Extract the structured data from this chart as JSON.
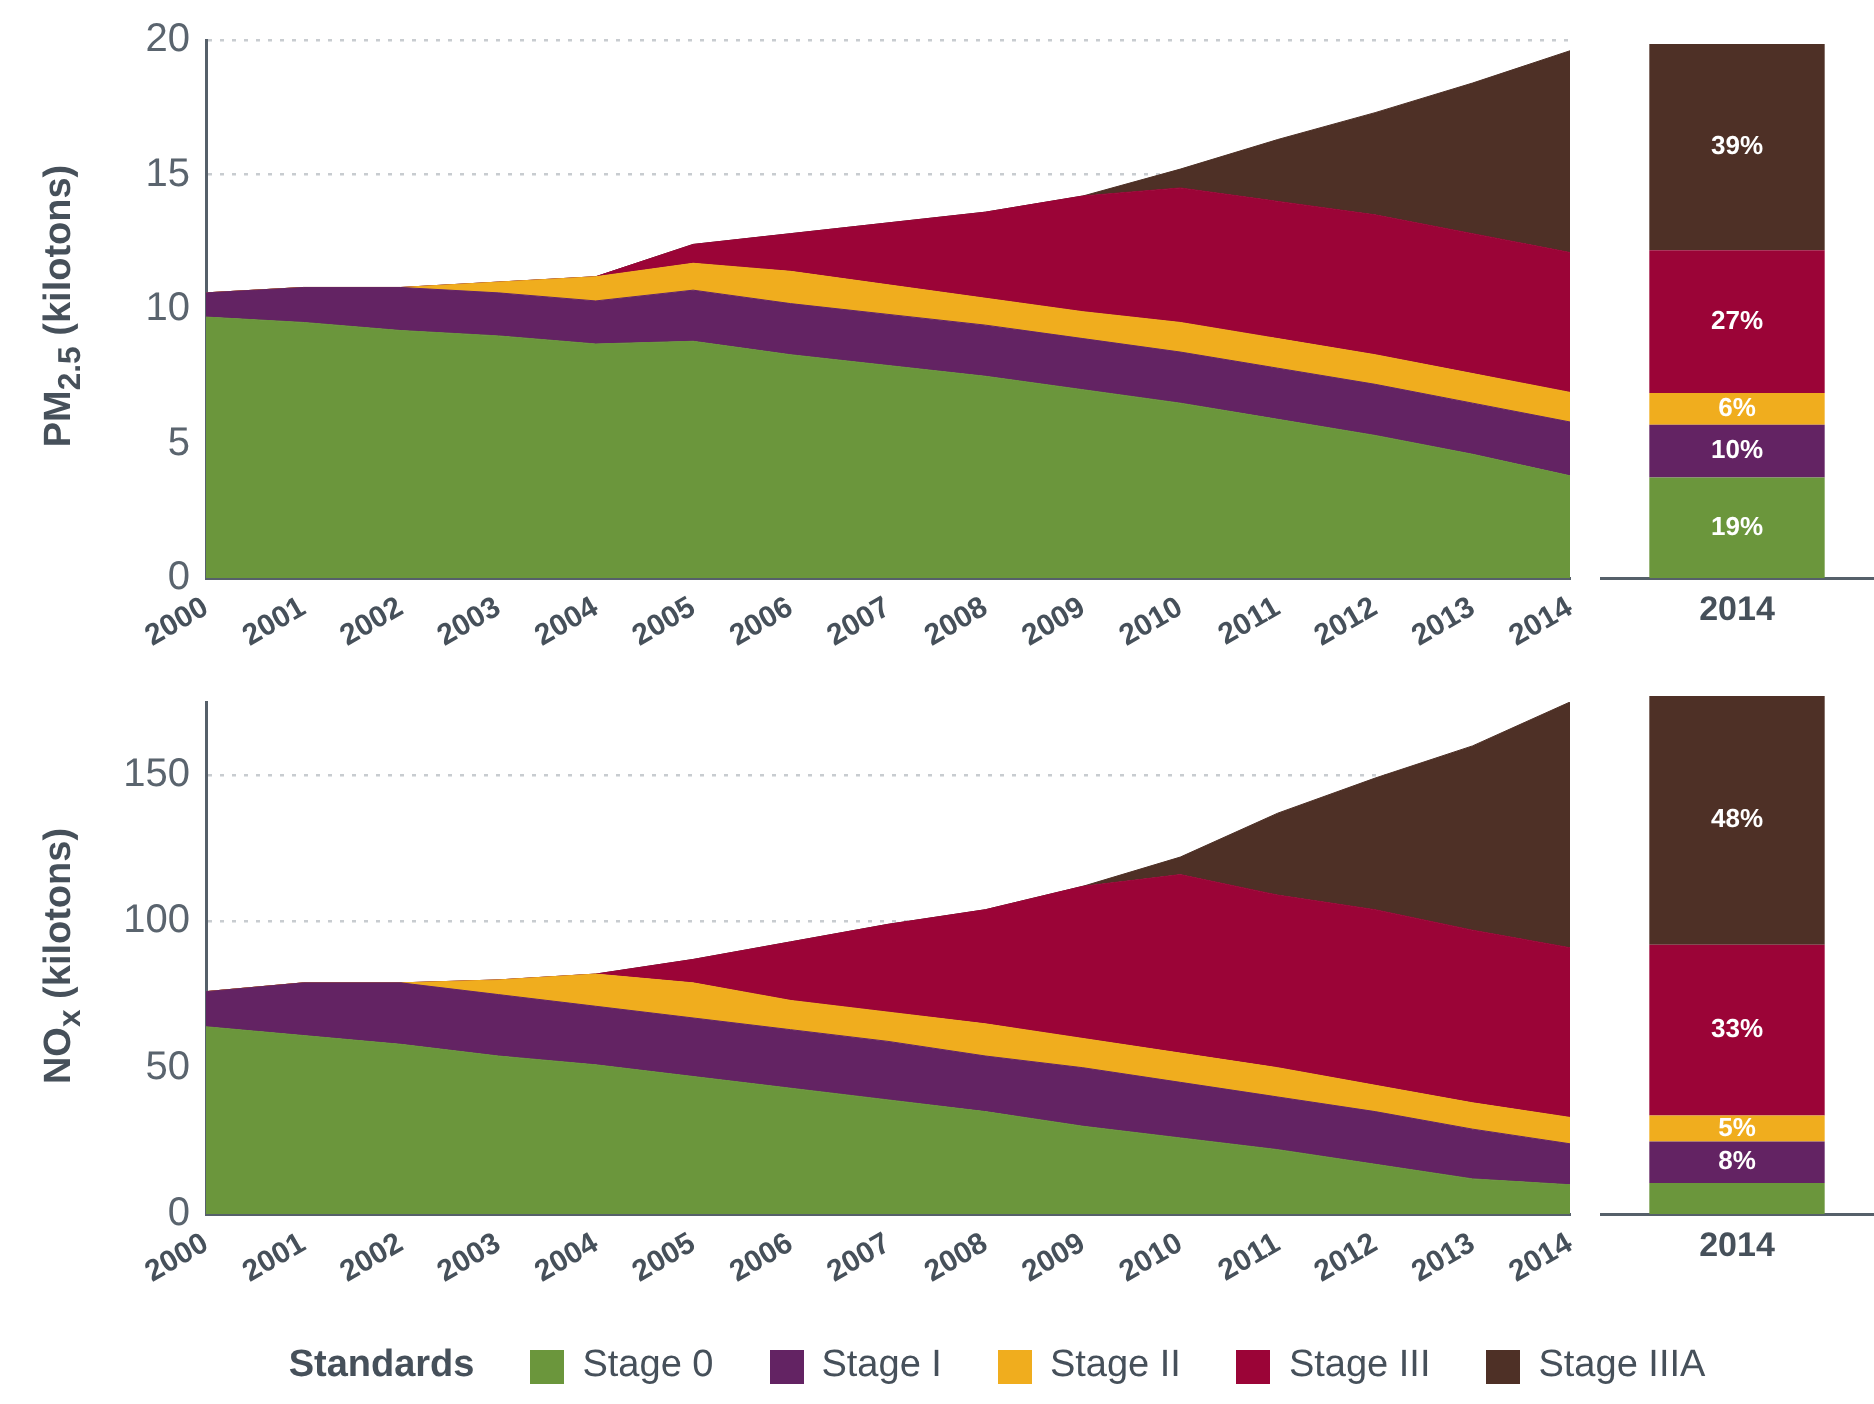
{
  "chart_data": [
    {
      "type": "area",
      "ylabel": "PM$_{2.5}$ (kilotons)",
      "stacked": true,
      "categories": [
        "2000",
        "2001",
        "2002",
        "2003",
        "2004",
        "2005",
        "2006",
        "2007",
        "2008",
        "2009",
        "2010",
        "2011",
        "2012",
        "2013",
        "2014"
      ],
      "ylim": [
        0,
        20
      ],
      "yticks": [
        0,
        5,
        10,
        15,
        20
      ],
      "grid": "y",
      "legend": "bottom",
      "legend_title": "Standards",
      "series": [
        {
          "name": "Stage 0",
          "color": "#6b963c",
          "values": [
            9.7,
            9.5,
            9.2,
            9.0,
            8.7,
            8.8,
            8.3,
            7.9,
            7.5,
            7.0,
            6.5,
            5.9,
            5.3,
            4.6,
            3.8
          ]
        },
        {
          "name": "Stage I",
          "color": "#632363",
          "values": [
            0.9,
            1.3,
            1.6,
            1.6,
            1.6,
            1.9,
            1.9,
            1.9,
            1.9,
            1.9,
            1.9,
            1.9,
            1.9,
            1.9,
            2.0
          ]
        },
        {
          "name": "Stage II",
          "color": "#f0ad1e",
          "values": [
            0,
            0,
            0,
            0.4,
            0.9,
            1.0,
            1.2,
            1.1,
            1.0,
            1.0,
            1.1,
            1.1,
            1.1,
            1.1,
            1.1
          ]
        },
        {
          "name": "Stage III",
          "color": "#9b0437",
          "values": [
            0,
            0,
            0,
            0,
            0,
            0.7,
            1.4,
            2.3,
            3.2,
            4.3,
            5.0,
            5.1,
            5.2,
            5.2,
            5.2
          ]
        },
        {
          "name": "Stage IIIA",
          "color": "#4e3026",
          "values": [
            0,
            0,
            0,
            0,
            0,
            0,
            0,
            0,
            0,
            0,
            0.7,
            2.3,
            3.8,
            5.6,
            7.5
          ]
        }
      ]
    },
    {
      "type": "bar",
      "stacked": true,
      "categories": [
        "2014"
      ],
      "tick_labels": "x",
      "series": [
        {
          "color": "#6b963c",
          "values": [
            19
          ],
          "value_labels": [
            "19%"
          ]
        },
        {
          "color": "#632363",
          "values": [
            10
          ],
          "value_labels": [
            "10%"
          ]
        },
        {
          "color": "#f0ad1e",
          "values": [
            6
          ],
          "value_labels": [
            "6%"
          ]
        },
        {
          "color": "#9b0437",
          "values": [
            27
          ],
          "value_labels": [
            "27%"
          ]
        },
        {
          "color": "#4e3026",
          "values": [
            39
          ],
          "value_labels": [
            "39%"
          ]
        }
      ]
    },
    {
      "type": "area",
      "ylabel": "NO$_{x}$ (kilotons)",
      "stacked": true,
      "categories": [
        "2000",
        "2001",
        "2002",
        "2003",
        "2004",
        "2005",
        "2006",
        "2007",
        "2008",
        "2009",
        "2010",
        "2011",
        "2012",
        "2013",
        "2014"
      ],
      "ylim": [
        0,
        175
      ],
      "yticks": [
        0,
        50,
        100,
        150
      ],
      "grid": "y",
      "series": [
        {
          "color": "#6b963c",
          "values": [
            64,
            61,
            58,
            54,
            51,
            47,
            43,
            39,
            35,
            30,
            26,
            22,
            17,
            12,
            10
          ]
        },
        {
          "color": "#632363",
          "values": [
            12,
            18,
            21,
            21,
            20,
            20,
            20,
            20,
            19,
            20,
            19,
            18,
            18,
            17,
            14
          ]
        },
        {
          "color": "#f0ad1e",
          "values": [
            0,
            0,
            0,
            5,
            11,
            12,
            10,
            10,
            11,
            10,
            10,
            10,
            9,
            9,
            9
          ]
        },
        {
          "color": "#9b0437",
          "values": [
            0,
            0,
            0,
            0,
            0,
            8,
            20,
            30,
            39,
            52,
            61,
            59,
            60,
            59,
            58
          ]
        },
        {
          "color": "#4e3026",
          "values": [
            0,
            0,
            0,
            0,
            0,
            0,
            0,
            0,
            0,
            0,
            6,
            28,
            45,
            63,
            84
          ]
        }
      ]
    },
    {
      "type": "bar",
      "stacked": true,
      "categories": [
        "2014"
      ],
      "tick_labels": "x",
      "series": [
        {
          "color": "#6b963c",
          "values": [
            6
          ],
          "value_labels": [
            null
          ]
        },
        {
          "color": "#632363",
          "values": [
            8
          ],
          "value_labels": [
            "8%"
          ]
        },
        {
          "color": "#f0ad1e",
          "values": [
            5
          ],
          "value_labels": [
            "5%"
          ]
        },
        {
          "color": "#9b0437",
          "values": [
            33
          ],
          "value_labels": [
            "33%"
          ]
        },
        {
          "color": "#4e3026",
          "values": [
            48
          ],
          "value_labels": [
            "48%"
          ]
        }
      ]
    }
  ]
}
